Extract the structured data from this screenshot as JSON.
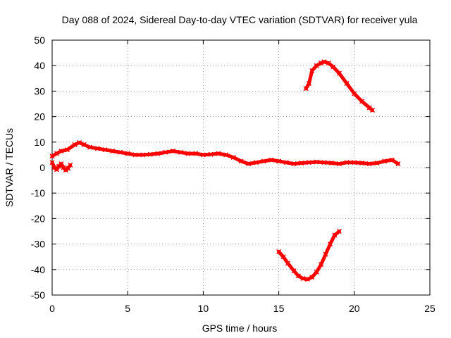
{
  "chart_data": {
    "type": "scatter",
    "title": "Day 088 of 2024, Sidereal Day-to-day VTEC variation (SDTVAR) for receiver yula",
    "xlabel": "GPS time / hours",
    "ylabel": "SDTVAR / TECUs",
    "xlim": [
      0,
      25
    ],
    "ylim": [
      -50,
      50
    ],
    "xticks": [
      0,
      5,
      10,
      15,
      20,
      25
    ],
    "yticks": [
      -50,
      -40,
      -30,
      -20,
      -10,
      0,
      10,
      20,
      30,
      40,
      50
    ],
    "grid": true,
    "color": "#ff0000",
    "series": [
      {
        "name": "main",
        "x": [
          0.0,
          0.3,
          0.6,
          1.0,
          1.5,
          1.8,
          2.1,
          2.5,
          3.0,
          3.5,
          4.0,
          4.5,
          5.0,
          5.5,
          6.0,
          6.5,
          7.0,
          7.5,
          8.0,
          8.5,
          9.0,
          9.5,
          10.0,
          10.5,
          11.0,
          11.5,
          12.0,
          12.5,
          13.0,
          13.5,
          14.0,
          14.5,
          15.0,
          15.5,
          16.0,
          16.5,
          17.0,
          17.5,
          18.0,
          18.5,
          19.0,
          19.5,
          20.0,
          20.5,
          21.0,
          21.5,
          22.0,
          22.5,
          22.9
        ],
        "values": [
          4.5,
          5.5,
          6.5,
          7.0,
          9.0,
          9.8,
          9.0,
          8.0,
          7.5,
          7.0,
          6.5,
          6.0,
          5.5,
          5.0,
          5.0,
          5.2,
          5.5,
          6.0,
          6.5,
          6.0,
          5.5,
          5.5,
          5.0,
          5.2,
          5.5,
          5.0,
          4.0,
          2.5,
          1.5,
          2.0,
          2.5,
          3.0,
          2.5,
          2.0,
          1.5,
          1.8,
          2.0,
          2.2,
          2.0,
          1.8,
          1.5,
          2.0,
          2.0,
          1.8,
          1.5,
          1.8,
          2.5,
          3.0,
          1.5
        ]
      },
      {
        "name": "early-dip",
        "x": [
          0.0,
          0.15,
          0.3,
          0.45,
          0.6,
          0.75,
          0.9,
          1.05,
          1.2
        ],
        "values": [
          2.0,
          0.0,
          -0.8,
          0.5,
          1.5,
          0.0,
          -1.0,
          -0.3,
          1.0
        ]
      },
      {
        "name": "upper-arc",
        "x": [
          16.8,
          17.0,
          17.2,
          17.5,
          17.8,
          18.0,
          18.3,
          18.6,
          19.0,
          19.5,
          20.0,
          20.5,
          21.0,
          21.2
        ],
        "values": [
          31,
          33,
          38,
          40,
          41,
          41.5,
          41,
          39.5,
          37,
          33,
          29,
          26,
          23.5,
          22.5
        ]
      },
      {
        "name": "lower-arc",
        "x": [
          15.0,
          15.3,
          15.6,
          16.0,
          16.3,
          16.6,
          16.9,
          17.2,
          17.5,
          17.8,
          18.1,
          18.4,
          18.7,
          19.0
        ],
        "values": [
          -33,
          -35,
          -37.5,
          -40.5,
          -42.5,
          -43.5,
          -43.8,
          -43,
          -41,
          -38,
          -34,
          -30,
          -26.5,
          -25
        ]
      }
    ]
  }
}
